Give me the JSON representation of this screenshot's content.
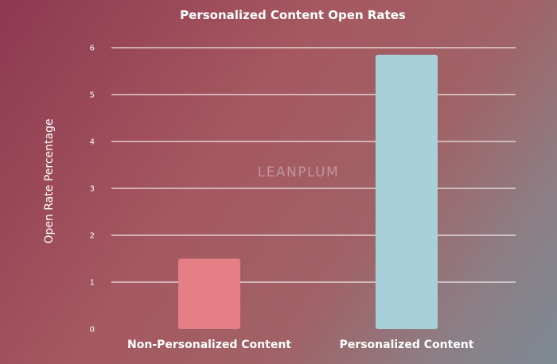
{
  "chart_data": {
    "type": "bar",
    "title": "Personalized Content Open Rates",
    "xlabel": "",
    "ylabel": "Open Rate Percentage",
    "categories": [
      "Non-Personalized Content",
      "Personalized Content"
    ],
    "values": [
      1.5,
      5.85
    ],
    "ylim": [
      0,
      6
    ],
    "yticks": [
      "0",
      "1",
      "2",
      "3",
      "4",
      "5",
      "6"
    ],
    "grid": true,
    "bar_colors": [
      "#e57f86",
      "#a8d0d9"
    ],
    "watermark": "LEANPLUM"
  }
}
